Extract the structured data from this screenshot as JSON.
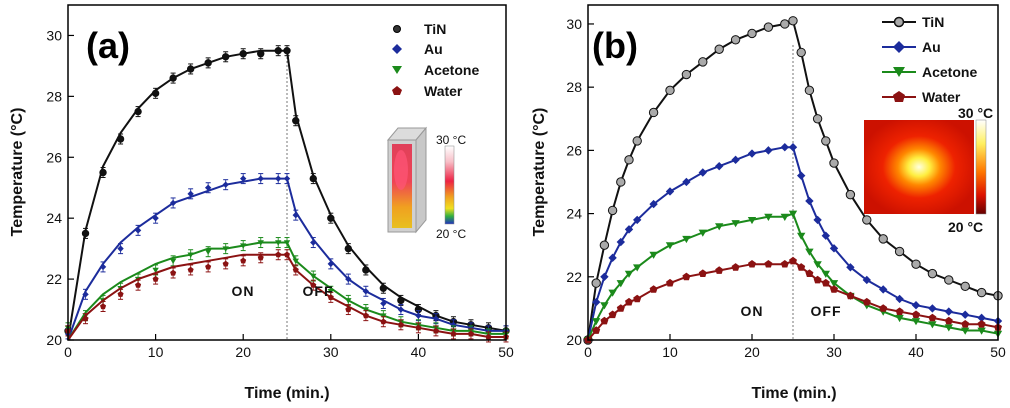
{
  "colors": {
    "TiN": "#111111",
    "Au": "#1c2c9c",
    "Acetone": "#1b8a1b",
    "Water": "#8b1212"
  },
  "chart_data": [
    {
      "panel": "(a)",
      "type": "scatter",
      "xlabel": "Time (min.)",
      "ylabel": "Temperature (°C)",
      "xlim": [
        0,
        50
      ],
      "ylim": [
        20,
        31
      ],
      "xticks": [
        0,
        10,
        20,
        30,
        40,
        50
      ],
      "yticks": [
        20,
        22,
        24,
        26,
        28,
        30
      ],
      "grid": false,
      "legend": "top-right",
      "annotations": {
        "on": "ON",
        "off": "OFF",
        "switch_time": 25
      },
      "inset": {
        "hot_label": "30 °C",
        "cold_label": "20 °C"
      },
      "series": [
        {
          "name": "TiN",
          "marker": "circle",
          "x": [
            0,
            2,
            4,
            6,
            8,
            10,
            12,
            14,
            16,
            18,
            20,
            22,
            24,
            25,
            26,
            28,
            30,
            32,
            34,
            36,
            38,
            40,
            42,
            44,
            46,
            48,
            50
          ],
          "y": [
            20.3,
            23.5,
            25.5,
            26.6,
            27.5,
            28.1,
            28.6,
            28.9,
            29.1,
            29.3,
            29.4,
            29.4,
            29.5,
            29.5,
            27.2,
            25.3,
            24.0,
            23.0,
            22.3,
            21.7,
            21.3,
            21.0,
            20.8,
            20.6,
            20.5,
            20.4,
            20.3
          ],
          "fit_y": [
            20.0,
            23.6,
            25.7,
            26.8,
            27.6,
            28.2,
            28.6,
            28.9,
            29.1,
            29.3,
            29.4,
            29.5,
            29.5,
            29.5,
            27.4,
            25.4,
            24.1,
            23.1,
            22.4,
            21.8,
            21.4,
            21.1,
            20.8,
            20.6,
            20.5,
            20.4,
            20.3
          ]
        },
        {
          "name": "Au",
          "marker": "diamond",
          "x": [
            0,
            2,
            4,
            6,
            8,
            10,
            12,
            14,
            16,
            18,
            20,
            22,
            24,
            25,
            26,
            28,
            30,
            32,
            34,
            36,
            38,
            40,
            42,
            44,
            46,
            48,
            50
          ],
          "y": [
            20.2,
            21.5,
            22.4,
            23.0,
            23.6,
            24.0,
            24.5,
            24.8,
            25.0,
            25.1,
            25.3,
            25.3,
            25.3,
            25.3,
            24.1,
            23.2,
            22.5,
            22.0,
            21.6,
            21.2,
            21.0,
            20.8,
            20.7,
            20.5,
            20.4,
            20.3,
            20.3
          ],
          "fit_y": [
            20.0,
            21.6,
            22.5,
            23.2,
            23.7,
            24.1,
            24.5,
            24.7,
            24.9,
            25.1,
            25.2,
            25.3,
            25.3,
            25.3,
            24.2,
            23.3,
            22.6,
            22.0,
            21.6,
            21.3,
            21.0,
            20.8,
            20.7,
            20.5,
            20.4,
            20.3,
            20.3
          ]
        },
        {
          "name": "Acetone",
          "marker": "triangle-down",
          "x": [
            0,
            2,
            4,
            6,
            8,
            10,
            12,
            14,
            16,
            18,
            20,
            22,
            24,
            25,
            26,
            28,
            30,
            32,
            34,
            36,
            38,
            40,
            42,
            44,
            46,
            48,
            50
          ],
          "y": [
            20.4,
            20.8,
            21.3,
            21.7,
            22.0,
            22.3,
            22.6,
            22.8,
            22.9,
            23.0,
            23.1,
            23.2,
            23.2,
            23.2,
            22.6,
            22.1,
            21.6,
            21.3,
            21.0,
            20.8,
            20.6,
            20.5,
            20.4,
            20.3,
            20.3,
            20.2,
            20.2
          ],
          "fit_y": [
            20.0,
            20.9,
            21.5,
            21.9,
            22.2,
            22.5,
            22.7,
            22.8,
            23.0,
            23.0,
            23.1,
            23.2,
            23.2,
            23.2,
            22.6,
            22.1,
            21.7,
            21.3,
            21.0,
            20.8,
            20.6,
            20.5,
            20.4,
            20.3,
            20.3,
            20.2,
            20.2
          ]
        },
        {
          "name": "Water",
          "marker": "pentagon",
          "x": [
            0,
            2,
            4,
            6,
            8,
            10,
            12,
            14,
            16,
            18,
            20,
            22,
            24,
            25,
            26,
            28,
            30,
            32,
            34,
            36,
            38,
            40,
            42,
            44,
            46,
            48,
            50
          ],
          "y": [
            20.3,
            20.7,
            21.1,
            21.5,
            21.8,
            22.0,
            22.2,
            22.3,
            22.4,
            22.5,
            22.6,
            22.7,
            22.8,
            22.8,
            22.3,
            21.8,
            21.4,
            21.0,
            20.8,
            20.6,
            20.5,
            20.4,
            20.3,
            20.2,
            20.2,
            20.1,
            20.1
          ],
          "fit_y": [
            20.0,
            20.8,
            21.3,
            21.7,
            22.0,
            22.2,
            22.4,
            22.5,
            22.6,
            22.7,
            22.8,
            22.8,
            22.8,
            22.8,
            22.3,
            21.8,
            21.4,
            21.1,
            20.8,
            20.6,
            20.5,
            20.4,
            20.3,
            20.2,
            20.2,
            20.1,
            20.1
          ]
        }
      ]
    },
    {
      "panel": "(b)",
      "type": "line",
      "xlabel": "Time (min.)",
      "ylabel": "Temperature (°C)",
      "xlim": [
        0,
        50
      ],
      "ylim": [
        20,
        30.6
      ],
      "xticks": [
        0,
        10,
        20,
        30,
        40,
        50
      ],
      "yticks": [
        20,
        22,
        24,
        26,
        28,
        30
      ],
      "grid": false,
      "legend": "top-right",
      "annotations": {
        "on": "ON",
        "off": "OFF",
        "switch_time": 25
      },
      "inset": {
        "hot_label": "30 °C",
        "cold_label": "20 °C"
      },
      "series": [
        {
          "name": "TiN",
          "marker": "circle",
          "x": [
            0,
            1,
            2,
            3,
            4,
            5,
            6,
            8,
            10,
            12,
            14,
            16,
            18,
            20,
            22,
            24,
            25,
            26,
            27,
            28,
            29,
            30,
            32,
            34,
            36,
            38,
            40,
            42,
            44,
            46,
            48,
            50
          ],
          "y": [
            20.0,
            21.8,
            23.0,
            24.1,
            25.0,
            25.7,
            26.3,
            27.2,
            27.9,
            28.4,
            28.8,
            29.2,
            29.5,
            29.7,
            29.9,
            30.0,
            30.1,
            29.1,
            27.9,
            27.0,
            26.3,
            25.6,
            24.6,
            23.8,
            23.2,
            22.8,
            22.4,
            22.1,
            21.9,
            21.7,
            21.5,
            21.4
          ]
        },
        {
          "name": "Au",
          "marker": "diamond",
          "x": [
            0,
            1,
            2,
            3,
            4,
            5,
            6,
            8,
            10,
            12,
            14,
            16,
            18,
            20,
            22,
            24,
            25,
            26,
            27,
            28,
            29,
            30,
            32,
            34,
            36,
            38,
            40,
            42,
            44,
            46,
            48,
            50
          ],
          "y": [
            20.0,
            21.2,
            22.0,
            22.6,
            23.1,
            23.5,
            23.8,
            24.3,
            24.7,
            25.0,
            25.3,
            25.5,
            25.7,
            25.9,
            26.0,
            26.1,
            26.1,
            25.2,
            24.4,
            23.8,
            23.3,
            22.9,
            22.3,
            21.9,
            21.6,
            21.3,
            21.1,
            21.0,
            20.9,
            20.8,
            20.7,
            20.6
          ]
        },
        {
          "name": "Acetone",
          "marker": "triangle-down",
          "x": [
            0,
            1,
            2,
            3,
            4,
            5,
            6,
            8,
            10,
            12,
            14,
            16,
            18,
            20,
            22,
            24,
            25,
            26,
            27,
            28,
            29,
            30,
            32,
            34,
            36,
            38,
            40,
            42,
            44,
            46,
            48,
            50
          ],
          "y": [
            20.0,
            20.6,
            21.1,
            21.5,
            21.8,
            22.1,
            22.3,
            22.7,
            23.0,
            23.2,
            23.4,
            23.6,
            23.7,
            23.8,
            23.9,
            23.9,
            24.0,
            23.3,
            22.8,
            22.4,
            22.1,
            21.8,
            21.4,
            21.1,
            20.9,
            20.7,
            20.6,
            20.5,
            20.4,
            20.3,
            20.3,
            20.2
          ]
        },
        {
          "name": "Water",
          "marker": "pentagon",
          "x": [
            0,
            1,
            2,
            3,
            4,
            5,
            6,
            8,
            10,
            12,
            14,
            16,
            18,
            20,
            22,
            24,
            25,
            26,
            27,
            28,
            29,
            30,
            32,
            34,
            36,
            38,
            40,
            42,
            44,
            46,
            48,
            50
          ],
          "y": [
            20.0,
            20.3,
            20.6,
            20.8,
            21.0,
            21.2,
            21.3,
            21.6,
            21.8,
            22.0,
            22.1,
            22.2,
            22.3,
            22.4,
            22.4,
            22.4,
            22.5,
            22.3,
            22.1,
            21.9,
            21.8,
            21.6,
            21.4,
            21.2,
            21.0,
            20.9,
            20.8,
            20.7,
            20.6,
            20.5,
            20.5,
            20.4
          ]
        }
      ]
    }
  ]
}
